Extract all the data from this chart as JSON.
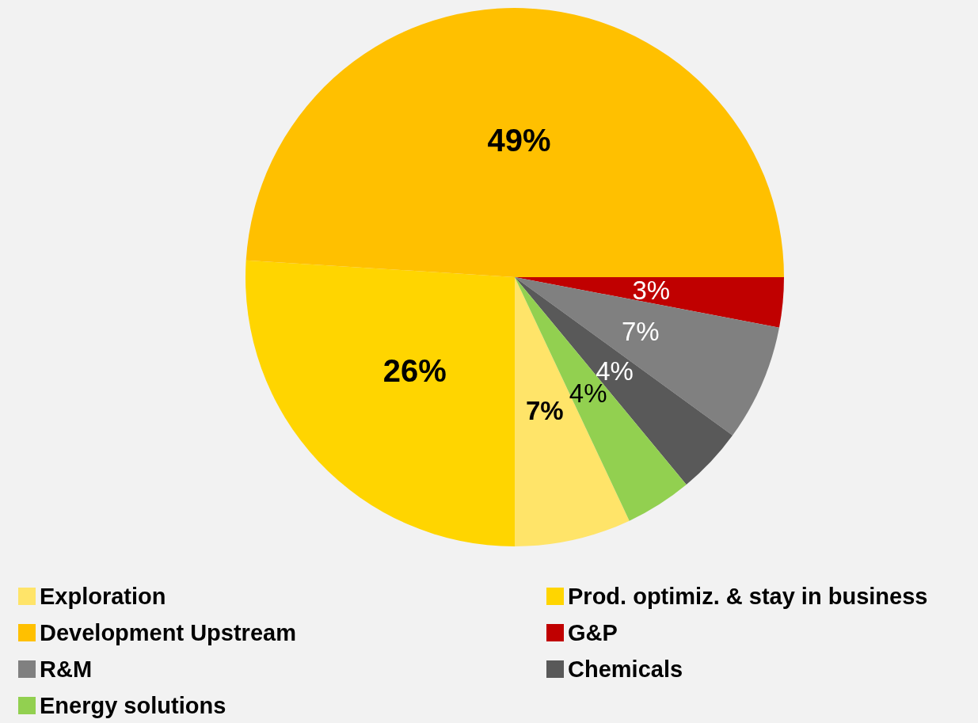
{
  "chart_data": {
    "type": "pie",
    "categories": [
      "Exploration",
      "Prod. optimiz. & stay in business",
      "Development Upstream",
      "G&P",
      "R&M",
      "Chemicals",
      "Energy solutions"
    ],
    "values": [
      7,
      26,
      49,
      3,
      7,
      4,
      4
    ],
    "colors": [
      "#ffe469",
      "#ffd500",
      "#ffc000",
      "#c00000",
      "#808080",
      "#595959",
      "#92d050"
    ],
    "value_labels": [
      "7%",
      "26%",
      "49%",
      "3%",
      "7%",
      "4%",
      "4%"
    ],
    "legend": "bottom"
  }
}
